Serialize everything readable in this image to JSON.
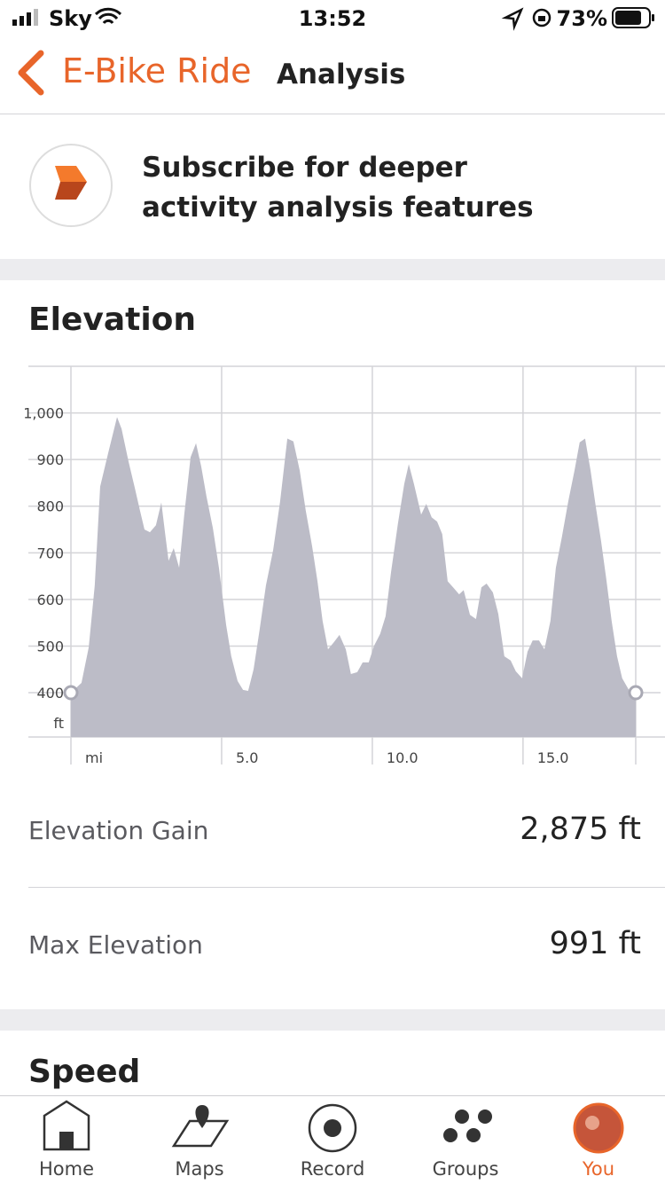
{
  "status_bar": {
    "carrier": "Sky",
    "time": "13:52",
    "battery": "73%"
  },
  "header": {
    "back_title": "E-Bike Ride",
    "title": "Analysis"
  },
  "banner": {
    "text": "Subscribe for deeper activity analysis features"
  },
  "elevation": {
    "title": "Elevation",
    "stats": [
      {
        "label": "Elevation Gain",
        "value": "2,875 ft"
      },
      {
        "label": "Max Elevation",
        "value": "991 ft"
      }
    ]
  },
  "chart_data": {
    "type": "area",
    "color": "#bcbcc7",
    "grid": true,
    "x_label": "mi",
    "y_label": "ft",
    "x": [
      0,
      0.35,
      0.59,
      0.79,
      0.97,
      1.24,
      1.53,
      1.68,
      1.91,
      2.12,
      2.29,
      2.44,
      2.62,
      2.82,
      3.0,
      3.12,
      3.24,
      3.41,
      3.59,
      3.76,
      3.97,
      4.15,
      4.32,
      4.5,
      4.71,
      4.91,
      5.15,
      5.32,
      5.53,
      5.71,
      5.88,
      6.06,
      6.26,
      6.47,
      6.71,
      6.94,
      7.18,
      7.38,
      7.59,
      7.79,
      8.0,
      8.18,
      8.35,
      8.53,
      8.71,
      8.91,
      9.12,
      9.29,
      9.5,
      9.68,
      9.88,
      10.06,
      10.26,
      10.44,
      10.62,
      10.85,
      11.06,
      11.21,
      11.38,
      11.62,
      11.79,
      11.97,
      12.15,
      12.32,
      12.5,
      12.68,
      12.88,
      13.03,
      13.24,
      13.44,
      13.62,
      13.79,
      14.0,
      14.18,
      14.38,
      14.59,
      14.76,
      14.97,
      15.15,
      15.32,
      15.53,
      15.71,
      15.91,
      16.09,
      16.29,
      16.5,
      16.71,
      16.88,
      17.06,
      17.24,
      17.41,
      17.59,
      17.76,
      17.94,
      18.12,
      18.29,
      18.53,
      18.74
    ],
    "series": [
      {
        "name": "Elevation",
        "color": "#bcbcc7",
        "values": [
          400,
          421,
          497,
          630,
          842,
          915,
          991,
          966,
          896,
          839,
          791,
          750,
          744,
          759,
          808,
          744,
          683,
          710,
          668,
          782,
          905,
          935,
          886,
          820,
          753,
          668,
          545,
          478,
          425,
          406,
          404,
          450,
          535,
          630,
          706,
          810,
          945,
          939,
          877,
          791,
          715,
          639,
          554,
          493,
          507,
          524,
          493,
          440,
          444,
          465,
          465,
          501,
          526,
          564,
          658,
          763,
          848,
          890,
          848,
          782,
          805,
          776,
          767,
          740,
          639,
          626,
          611,
          620,
          567,
          558,
          626,
          634,
          615,
          569,
          478,
          469,
          446,
          431,
          488,
          512,
          512,
          493,
          554,
          668,
          734,
          810,
          877,
          937,
          945,
          877,
          801,
          725,
          645,
          554,
          478,
          431,
          404,
          400
        ]
      }
    ],
    "xlim": [
      0,
      18.74
    ],
    "ylim": [
      305,
      1100
    ],
    "xticks": [
      {
        "value": 5,
        "label": "5.0"
      },
      {
        "value": 10,
        "label": "10.0"
      },
      {
        "value": 15,
        "label": "15.0"
      }
    ],
    "yticks": [
      400,
      500,
      600,
      700,
      800,
      900,
      {
        "value": 1000,
        "label": "1,000"
      }
    ]
  },
  "speed": {
    "title": "Speed"
  },
  "tab_bar": {
    "tabs": [
      "Home",
      "Maps",
      "Record",
      "Groups",
      "You"
    ]
  }
}
